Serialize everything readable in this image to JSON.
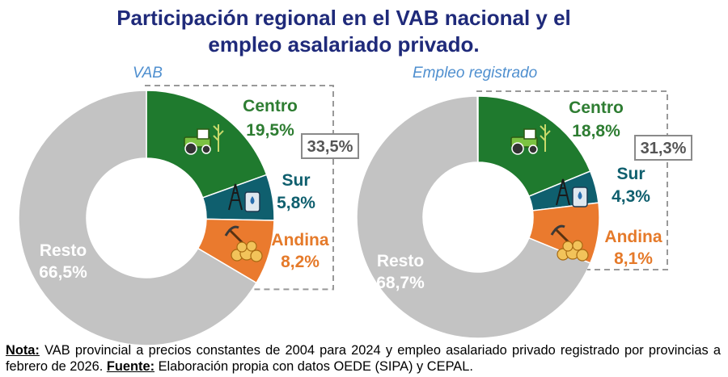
{
  "title_line1": "Participación regional en el VAB nacional y el",
  "title_line2": "empleo asalariado privado.",
  "chart_data": [
    {
      "type": "pie",
      "subtitle": "VAB",
      "categories": [
        "Centro",
        "Sur",
        "Andina",
        "Resto"
      ],
      "values": [
        19.5,
        5.8,
        8.2,
        66.5
      ],
      "labels": [
        "19,5%",
        "5,8%",
        "8,2%",
        "66,5%"
      ],
      "group_total_label": "33,5%"
    },
    {
      "type": "pie",
      "subtitle": "Empleo registrado",
      "categories": [
        "Centro",
        "Sur",
        "Andina",
        "Resto"
      ],
      "values": [
        18.8,
        4.3,
        8.1,
        68.7
      ],
      "labels": [
        "18,8%",
        "4,3%",
        "8,1%",
        "68,7%"
      ],
      "group_total_label": "31,3%"
    }
  ],
  "colors": {
    "Centro": "#1f7a2e",
    "Sur": "#0f5f6e",
    "Andina": "#ea7a2e",
    "Resto": "#c3c3c3",
    "label_centro": "#2e7d32",
    "label_sur": "#0f5f6e",
    "label_andina": "#e57a2a"
  },
  "icons": {
    "Centro": "tractor-icon",
    "Sur": "oil-rig-icon",
    "Andina": "mining-icon"
  },
  "note": {
    "nota_label": "Nota:",
    "nota_text": " VAB provincial a precios constantes de 2004 para 2024 y empleo asalariado privado registrado por provincias a febrero de 2026. ",
    "fuente_label": "Fuente:",
    "fuente_text": " Elaboración propia con datos OEDE (SIPA) y CEPAL."
  }
}
